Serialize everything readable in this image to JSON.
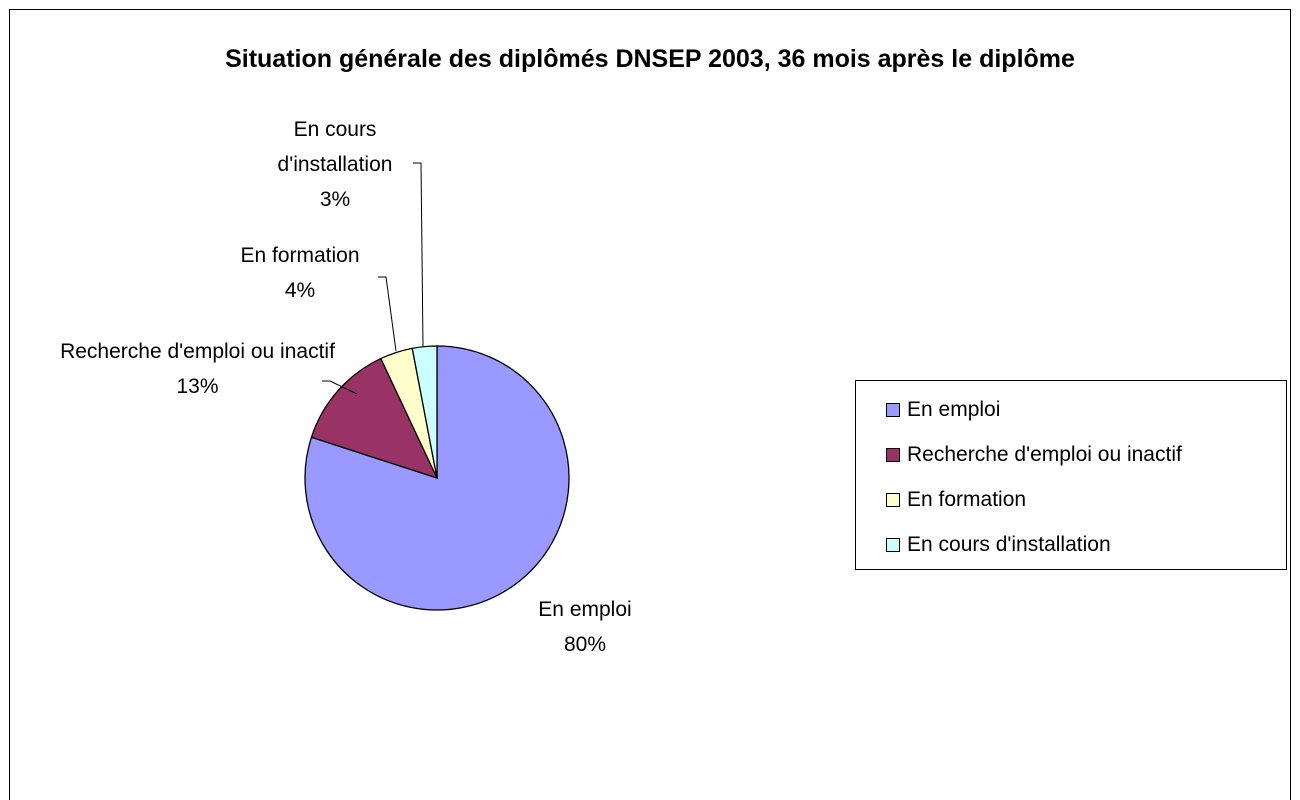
{
  "chart_data": {
    "type": "pie",
    "title": "Situation générale des diplômés DNSEP 2003, 36 mois après le diplôme",
    "categories": [
      "En emploi",
      "Recherche d'emploi ou inactif",
      "En formation",
      "En cours d'installation"
    ],
    "values": [
      80,
      13,
      4,
      3
    ],
    "value_labels": [
      "80%",
      "13%",
      "4%",
      "3%"
    ],
    "colors": [
      "#9999ff",
      "#993366",
      "#ffffcc",
      "#ccffff"
    ],
    "legend": "right"
  }
}
